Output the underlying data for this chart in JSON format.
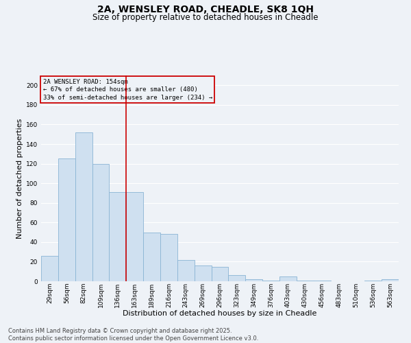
{
  "title": "2A, WENSLEY ROAD, CHEADLE, SK8 1QH",
  "subtitle": "Size of property relative to detached houses in Cheadle",
  "xlabel": "Distribution of detached houses by size in Cheadle",
  "ylabel": "Number of detached properties",
  "footer_line1": "Contains HM Land Registry data © Crown copyright and database right 2025.",
  "footer_line2": "Contains public sector information licensed under the Open Government Licence v3.0.",
  "categories": [
    "29sqm",
    "56sqm",
    "82sqm",
    "109sqm",
    "136sqm",
    "163sqm",
    "189sqm",
    "216sqm",
    "243sqm",
    "269sqm",
    "296sqm",
    "323sqm",
    "349sqm",
    "376sqm",
    "403sqm",
    "430sqm",
    "456sqm",
    "483sqm",
    "510sqm",
    "536sqm",
    "563sqm"
  ],
  "values": [
    26,
    125,
    152,
    120,
    91,
    91,
    50,
    48,
    22,
    16,
    15,
    6,
    2,
    1,
    5,
    1,
    1,
    0,
    0,
    1,
    2
  ],
  "bar_color": "#cfe0f0",
  "bar_edge_color": "#8ab4d4",
  "vline_position": 4.5,
  "vline_color": "#cc0000",
  "annotation_title": "2A WENSLEY ROAD: 154sqm",
  "annotation_line1": "← 67% of detached houses are smaller (480)",
  "annotation_line2": "33% of semi-detached houses are larger (234) →",
  "annotation_box_color": "#cc0000",
  "ylim": [
    0,
    210
  ],
  "yticks": [
    0,
    20,
    40,
    60,
    80,
    100,
    120,
    140,
    160,
    180,
    200
  ],
  "background_color": "#eef2f7",
  "grid_color": "#ffffff",
  "title_fontsize": 10,
  "subtitle_fontsize": 8.5,
  "axis_label_fontsize": 8,
  "tick_fontsize": 6.5,
  "annotation_fontsize": 6.5,
  "footer_fontsize": 6
}
